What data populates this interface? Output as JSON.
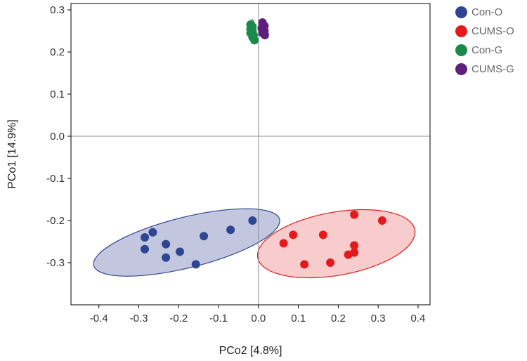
{
  "chart_data": {
    "type": "scatter",
    "title": "",
    "xlabel": "PCo2 [4.8%]",
    "ylabel": "PCo1 [14.9%]",
    "xlim": [
      -0.47,
      0.43
    ],
    "ylim": [
      -0.4,
      0.315
    ],
    "x_ticks": [
      -0.4,
      -0.3,
      -0.2,
      -0.1,
      0.0,
      0.1,
      0.2,
      0.3,
      0.4
    ],
    "x_tick_labels": [
      "-0.4",
      "-0.3",
      "-0.2",
      "-0.1",
      "0.0",
      "0.1",
      "0.2",
      "0.3",
      "0.4"
    ],
    "y_ticks": [
      -0.3,
      -0.2,
      -0.1,
      0.0,
      0.1,
      0.2,
      0.3
    ],
    "y_tick_labels": [
      "-0.3",
      "-0.2",
      "-0.1",
      "0.0",
      "0.1",
      "0.2",
      "0.3"
    ],
    "grid": false,
    "reference_lines": {
      "x": 0,
      "y": 0
    },
    "legend_position": "top-right outside",
    "series": [
      {
        "name": "Con-O",
        "color": "#2E4593",
        "fill": "#8F99C4",
        "points": [
          [
            -0.285,
            -0.24
          ],
          [
            -0.265,
            -0.228
          ],
          [
            -0.285,
            -0.268
          ],
          [
            -0.232,
            -0.256
          ],
          [
            -0.232,
            -0.288
          ],
          [
            -0.197,
            -0.274
          ],
          [
            -0.157,
            -0.304
          ],
          [
            -0.137,
            -0.237
          ],
          [
            -0.07,
            -0.222
          ],
          [
            -0.015,
            -0.2
          ]
        ],
        "ellipse": {
          "cx": -0.18,
          "cy": -0.252,
          "rx": 0.24,
          "ry": 0.06,
          "angle_deg": -14
        }
      },
      {
        "name": "CUMS-O",
        "color": "#E31A1C",
        "fill": "#F3A2A2",
        "points": [
          [
            0.063,
            -0.254
          ],
          [
            0.087,
            -0.234
          ],
          [
            0.115,
            -0.304
          ],
          [
            0.162,
            -0.234
          ],
          [
            0.18,
            -0.3
          ],
          [
            0.225,
            -0.281
          ],
          [
            0.24,
            -0.186
          ],
          [
            0.24,
            -0.259
          ],
          [
            0.24,
            -0.276
          ],
          [
            0.31,
            -0.2
          ]
        ],
        "ellipse": {
          "cx": 0.195,
          "cy": -0.255,
          "rx": 0.2,
          "ry": 0.075,
          "angle_deg": -10
        }
      },
      {
        "name": "Con-G",
        "color": "#1A8A4A",
        "fill": "#A9D6B8",
        "points": [
          [
            -0.02,
            0.265
          ],
          [
            -0.015,
            0.26
          ],
          [
            -0.02,
            0.255
          ],
          [
            -0.015,
            0.25
          ],
          [
            -0.02,
            0.245
          ],
          [
            -0.012,
            0.24
          ],
          [
            -0.015,
            0.235
          ],
          [
            -0.01,
            0.228
          ]
        ],
        "ellipse": {
          "cx": -0.016,
          "cy": 0.25,
          "rx": 0.008,
          "ry": 0.027,
          "angle_deg": 0
        }
      },
      {
        "name": "CUMS-G",
        "color": "#5E1F7A",
        "fill": "#C8A8D6",
        "points": [
          [
            0.01,
            0.27
          ],
          [
            0.015,
            0.262
          ],
          [
            0.008,
            0.256
          ],
          [
            0.015,
            0.25
          ],
          [
            0.01,
            0.245
          ],
          [
            0.016,
            0.24
          ],
          [
            0.012,
            0.252
          ]
        ],
        "ellipse": {
          "cx": 0.012,
          "cy": 0.255,
          "rx": 0.008,
          "ry": 0.022,
          "angle_deg": 0
        }
      }
    ]
  }
}
